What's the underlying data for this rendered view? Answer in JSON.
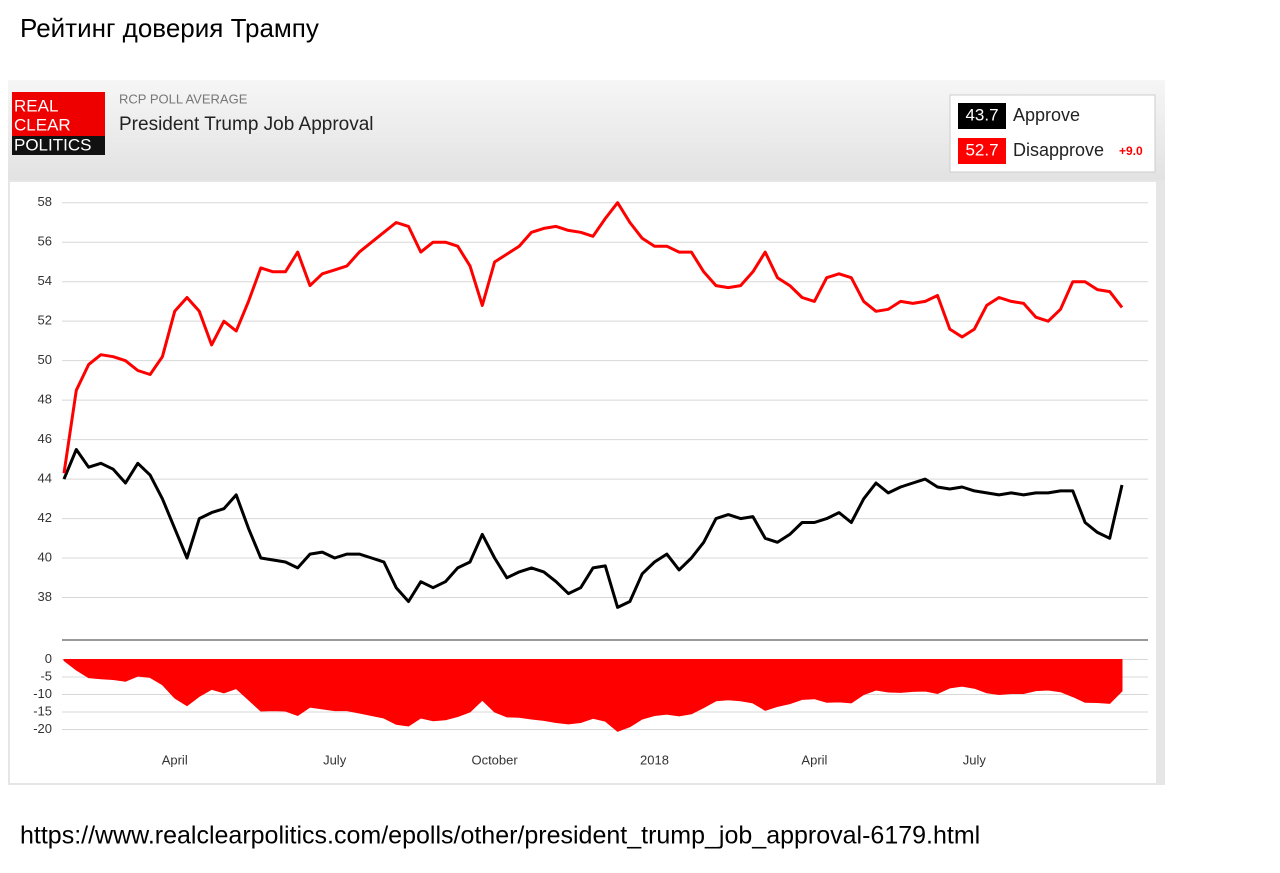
{
  "title": "Рейтинг доверия Трампу",
  "source_url": "https://www.realclearpolitics.com/epolls/other/president_trump_job_approval-6179.html",
  "chart_data": [
    {
      "type": "line",
      "logo": [
        "REAL",
        "CLEAR",
        "POLITICS"
      ],
      "kicker": "RCP POLL AVERAGE",
      "title": "President Trump Job Approval",
      "latest": [
        43.7,
        52.7
      ],
      "spread_label": "+9.0",
      "series": [
        {
          "name": "Approve",
          "color": "#000000",
          "values": [
            44,
            45.5,
            44.6,
            44.8,
            44.5,
            43.8,
            44.8,
            44.2,
            43,
            41.5,
            40,
            42,
            42.3,
            42.5,
            43.2,
            41.5,
            40,
            39.9,
            39.8,
            39.5,
            40.2,
            40.3,
            40,
            40.2,
            40.2,
            40,
            39.8,
            38.5,
            37.8,
            38.8,
            38.5,
            38.8,
            39.5,
            39.8,
            41.2,
            40,
            39,
            39.3,
            39.5,
            39.3,
            38.8,
            38.2,
            38.5,
            39.5,
            39.6,
            37.5,
            37.8,
            39.2,
            39.8,
            40.2,
            39.4,
            40,
            40.8,
            42,
            42.2,
            42,
            42.1,
            41,
            40.8,
            41.2,
            41.8,
            41.8,
            42,
            42.3,
            41.8,
            43,
            43.8,
            43.3,
            43.6,
            43.8,
            44,
            43.6,
            43.5,
            43.6,
            43.4,
            43.3,
            43.2,
            43.3,
            43.2,
            43.3,
            43.3,
            43.4,
            43.4,
            41.8,
            41.3,
            41,
            43.7
          ]
        },
        {
          "name": "Disapprove",
          "color": "#ff0000",
          "values": [
            44.3,
            48.5,
            49.8,
            50.3,
            50.2,
            50,
            49.5,
            49.3,
            50.2,
            52.5,
            53.2,
            52.5,
            50.8,
            52,
            51.5,
            53,
            54.7,
            54.5,
            54.5,
            55.5,
            53.8,
            54.4,
            54.6,
            54.8,
            55.5,
            56,
            56.5,
            57,
            56.8,
            55.5,
            56,
            56,
            55.8,
            54.8,
            52.8,
            55,
            55.4,
            55.8,
            56.5,
            56.7,
            56.8,
            56.6,
            56.5,
            56.3,
            57.2,
            58,
            57,
            56.2,
            55.8,
            55.8,
            55.5,
            55.5,
            54.5,
            53.8,
            53.7,
            53.8,
            54.5,
            55.5,
            54.2,
            53.8,
            53.2,
            53,
            54.2,
            54.4,
            54.2,
            53,
            52.5,
            52.6,
            53,
            52.9,
            53,
            53.3,
            51.6,
            51.2,
            51.6,
            52.8,
            53.2,
            53,
            52.9,
            52.2,
            52,
            52.6,
            54,
            54,
            53.6,
            53.5,
            52.7
          ]
        }
      ],
      "ylim": [
        36,
        59
      ],
      "yticks": [
        38,
        40,
        42,
        44,
        46,
        48,
        50,
        52,
        54,
        56,
        58
      ],
      "grid": true
    },
    {
      "type": "area",
      "color": "#ff0000",
      "categories": [
        null,
        null,
        null,
        null,
        null,
        null,
        null,
        null,
        null,
        "April",
        null,
        null,
        null,
        null,
        null,
        null,
        null,
        null,
        null,
        null,
        null,
        null,
        "July",
        null,
        null,
        null,
        null,
        null,
        null,
        null,
        null,
        null,
        null,
        null,
        null,
        "October",
        null,
        null,
        null,
        null,
        null,
        null,
        null,
        null,
        null,
        null,
        null,
        null,
        "2018",
        null,
        null,
        null,
        null,
        null,
        null,
        null,
        null,
        null,
        null,
        null,
        null,
        "April",
        null,
        null,
        null,
        null,
        null,
        null,
        null,
        null,
        null,
        null,
        null,
        null,
        "July",
        null,
        null,
        null,
        null,
        null,
        null,
        null,
        null,
        null,
        null,
        null,
        null
      ],
      "values": [
        -0.3,
        -3,
        -5.2,
        -5.5,
        -5.7,
        -6.2,
        -4.7,
        -5.1,
        -7.2,
        -11,
        -13.2,
        -10.5,
        -8.5,
        -9.5,
        -8.3,
        -11.5,
        -14.7,
        -14.6,
        -14.7,
        -16,
        -13.6,
        -14.1,
        -14.6,
        -14.6,
        -15.3,
        -16,
        -16.7,
        -18.5,
        -19,
        -16.7,
        -17.5,
        -17.2,
        -16.3,
        -15,
        -11.6,
        -15,
        -16.4,
        -16.5,
        -17,
        -17.4,
        -18,
        -18.4,
        -18,
        -16.8,
        -17.6,
        -20.5,
        -19.2,
        -17,
        -16,
        -15.6,
        -16.1,
        -15.5,
        -13.7,
        -11.8,
        -11.5,
        -11.8,
        -12.4,
        -14.5,
        -13.4,
        -12.6,
        -11.4,
        -11.2,
        -12.2,
        -12.1,
        -12.4,
        -10,
        -8.7,
        -9.3,
        -9.4,
        -9.1,
        -9,
        -9.7,
        -8.1,
        -7.6,
        -8.2,
        -9.5,
        -10,
        -9.7,
        -9.7,
        -8.9,
        -8.7,
        -9.2,
        -10.6,
        -12.2,
        -12.3,
        -12.5,
        -9
      ],
      "ylim": [
        -23,
        5
      ],
      "yticks": [
        0,
        -5,
        -10,
        -15,
        -20
      ],
      "grid": true
    }
  ]
}
